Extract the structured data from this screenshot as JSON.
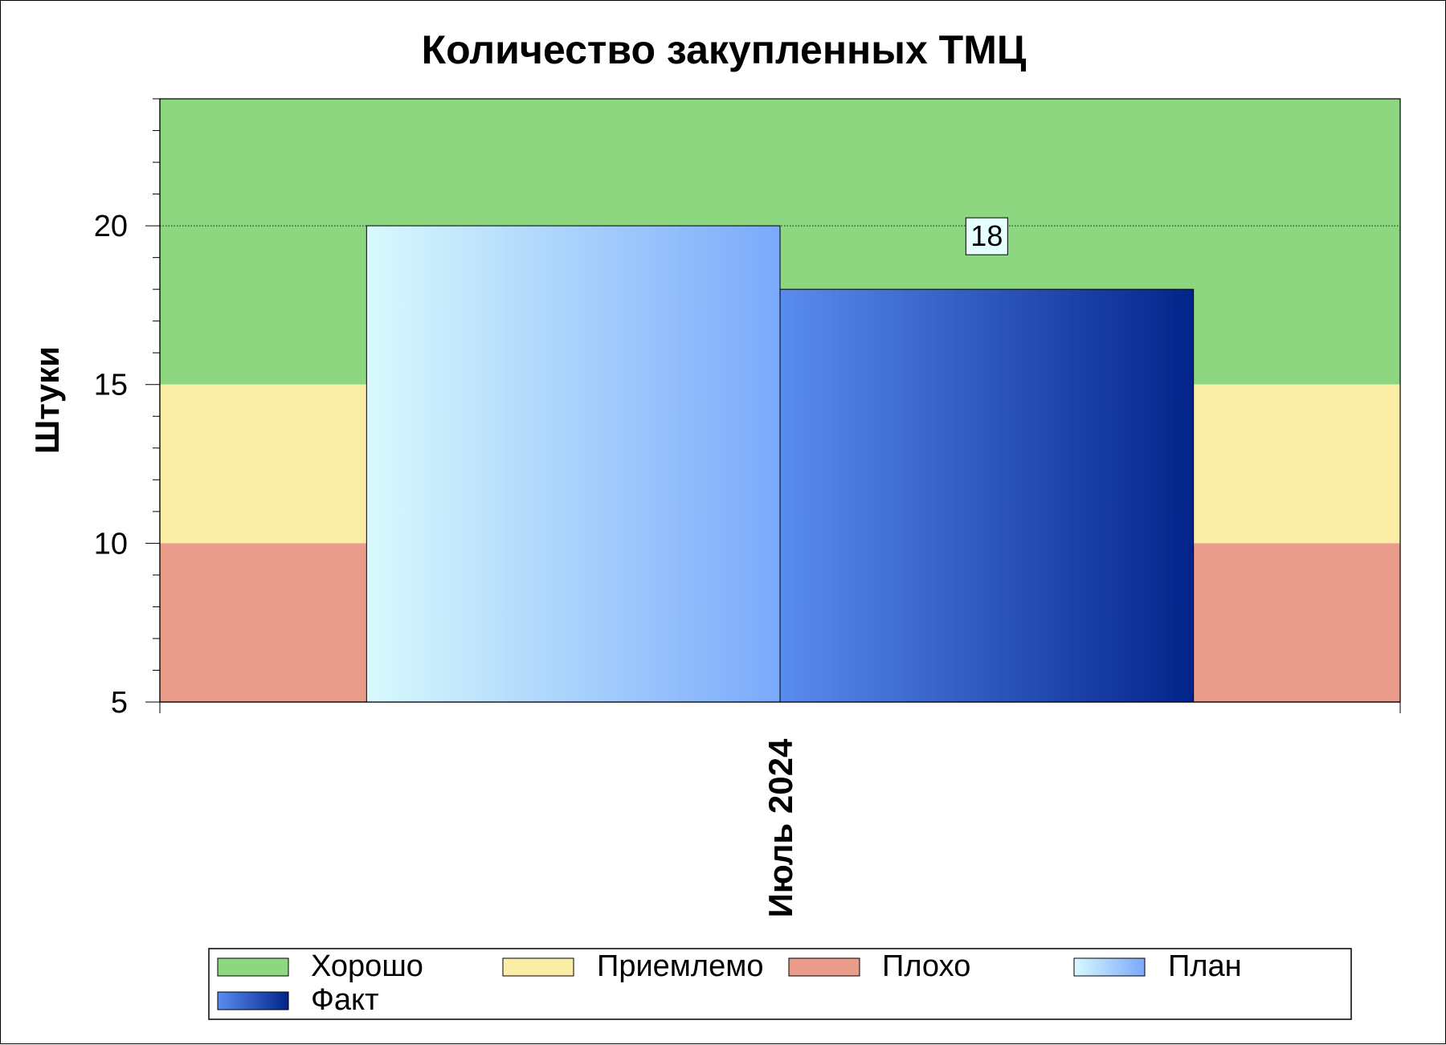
{
  "chart_data": {
    "type": "bar",
    "title": "Количество закупленных ТМЦ",
    "ylabel": "Штуки",
    "xlabel": "",
    "ylim": [
      5,
      24
    ],
    "yticks": [
      5,
      10,
      15,
      20
    ],
    "ytick_labels": [
      "5",
      "10",
      "15",
      "20"
    ],
    "reference_line": 20,
    "categories": [
      "Июль 2024"
    ],
    "bands": [
      {
        "name": "Хорошо",
        "from": 15,
        "to": 24,
        "color": "#8ed781"
      },
      {
        "name": "Приемлемо",
        "from": 10,
        "to": 15,
        "color": "#faeea7"
      },
      {
        "name": "Плохо",
        "from": 5,
        "to": 10,
        "color": "#ea9c8b"
      }
    ],
    "series": [
      {
        "name": "План",
        "values": [
          20
        ],
        "color_from": "#d8fafd",
        "color_to": "#7aa9fb",
        "show_label": false
      },
      {
        "name": "Факт",
        "values": [
          18
        ],
        "color_from": "#5a8cf0",
        "color_to": "#02248a",
        "show_label": true
      }
    ],
    "data_labels": [
      "18"
    ],
    "legend_entries": [
      "Хорошо",
      "Приемлемо",
      "Плохо",
      "План",
      "Факт"
    ],
    "legend_position": "bottom",
    "grid": false
  }
}
